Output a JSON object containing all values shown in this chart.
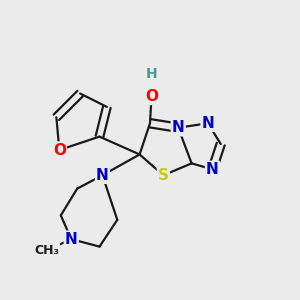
{
  "bg_color": "#ebebeb",
  "bond_color": "#1a1a1a",
  "bond_width": 1.6,
  "atom_colors": {
    "N": "#0000cc",
    "O": "#ff0000",
    "S": "#cccc00",
    "H": "#4a9a9a",
    "C": "#1a1a1a"
  },
  "font_size": 11,
  "font_size_h": 10,
  "font_size_me": 9
}
